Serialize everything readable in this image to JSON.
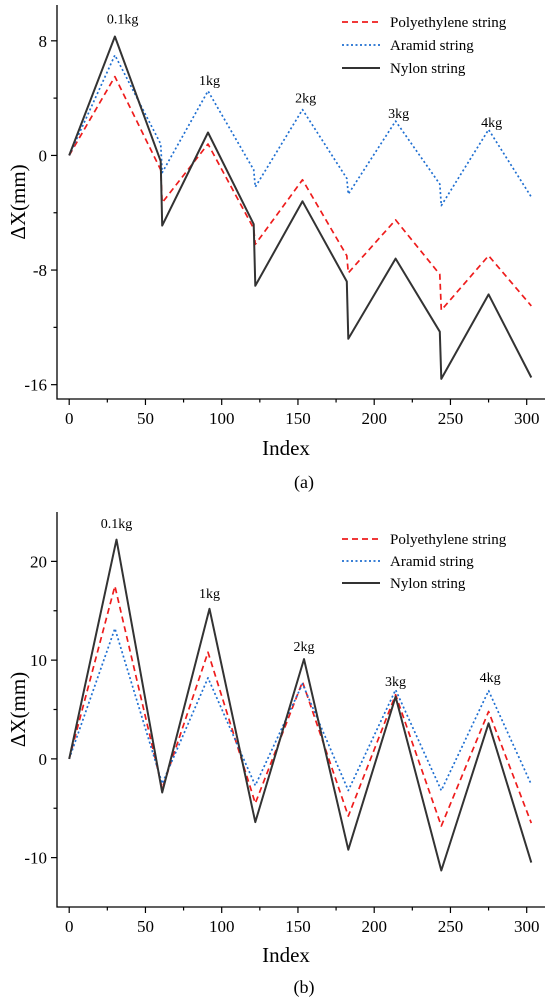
{
  "chart_data": [
    {
      "type": "line",
      "panel_label": "(a)",
      "xlabel": "Index",
      "ylabel": "ΔX(mm)",
      "xlim": [
        -8,
        312
      ],
      "ylim": [
        -17,
        10.5
      ],
      "xticks": [
        0,
        50,
        100,
        150,
        200,
        250,
        300
      ],
      "yticks": [
        -16,
        -8,
        0,
        8
      ],
      "legend_position": "top-right",
      "annotations": [
        {
          "text": "0.1kg",
          "x": 35,
          "y": 9.2
        },
        {
          "text": "1kg",
          "x": 92,
          "y": 4.9
        },
        {
          "text": "2kg",
          "x": 155,
          "y": 3.7
        },
        {
          "text": "3kg",
          "x": 216,
          "y": 2.6
        },
        {
          "text": "4kg",
          "x": 277,
          "y": 2.0
        }
      ],
      "series": [
        {
          "name": "Polyethylene string",
          "color": "#ee1c1c",
          "dash": "6,4",
          "x": [
            0,
            30,
            60,
            61,
            91,
            121,
            122,
            153,
            182,
            183,
            214,
            243,
            244,
            275,
            303
          ],
          "y": [
            0,
            5.5,
            -1.0,
            -3.3,
            0.8,
            -5.1,
            -6.2,
            -1.7,
            -7.0,
            -8.2,
            -4.5,
            -8.3,
            -10.8,
            -7.0,
            -10.5
          ]
        },
        {
          "name": "Aramid string",
          "color": "#1f6fd1",
          "dash": "2,2.5",
          "x": [
            0,
            30,
            60,
            61,
            91,
            121,
            122,
            153,
            182,
            183,
            214,
            243,
            244,
            275,
            303
          ],
          "y": [
            0,
            7.0,
            0.8,
            -1.2,
            4.5,
            -1.0,
            -2.2,
            3.2,
            -1.6,
            -2.7,
            2.4,
            -2.0,
            -3.5,
            1.8,
            -2.9
          ]
        },
        {
          "name": "Nylon string",
          "color": "#333333",
          "dash": "",
          "x": [
            0,
            30,
            60,
            61,
            91,
            121,
            122,
            153,
            182,
            183,
            214,
            243,
            244,
            275,
            303
          ],
          "y": [
            0,
            8.3,
            -0.4,
            -4.9,
            1.6,
            -4.8,
            -9.1,
            -3.2,
            -8.8,
            -12.8,
            -7.2,
            -12.3,
            -15.6,
            -9.7,
            -15.5
          ]
        }
      ]
    },
    {
      "type": "line",
      "panel_label": "(b)",
      "xlabel": "Index",
      "ylabel": "ΔX(mm)",
      "xlim": [
        -8,
        312
      ],
      "ylim": [
        -15,
        25
      ],
      "xticks": [
        0,
        50,
        100,
        150,
        200,
        250,
        300
      ],
      "yticks": [
        -10,
        0,
        10,
        20
      ],
      "legend_position": "top-right",
      "annotations": [
        {
          "text": "0.1kg",
          "x": 31,
          "y": 23.4
        },
        {
          "text": "1kg",
          "x": 92,
          "y": 16.3
        },
        {
          "text": "2kg",
          "x": 154,
          "y": 10.9
        },
        {
          "text": "3kg",
          "x": 214,
          "y": 7.4
        },
        {
          "text": "4kg",
          "x": 276,
          "y": 7.8
        }
      ],
      "series": [
        {
          "name": "Polyethylene string",
          "color": "#ee1c1c",
          "dash": "6,4",
          "x": [
            0,
            30,
            61,
            91,
            122,
            153,
            183,
            214,
            244,
            275,
            303
          ],
          "y": [
            0,
            17.5,
            -3.0,
            10.8,
            -4.5,
            7.8,
            -5.8,
            6.5,
            -6.8,
            4.8,
            -6.5
          ]
        },
        {
          "name": "Aramid string",
          "color": "#1f6fd1",
          "dash": "2,2.5",
          "x": [
            0,
            30,
            61,
            91,
            122,
            153,
            183,
            214,
            244,
            275,
            303
          ],
          "y": [
            0,
            13.2,
            -2.5,
            8.2,
            -2.7,
            7.6,
            -3.2,
            7.0,
            -3.2,
            6.9,
            -2.6
          ]
        },
        {
          "name": "Nylon string",
          "color": "#333333",
          "dash": "",
          "x": [
            0,
            31,
            61,
            92,
            122,
            154,
            183,
            214,
            244,
            275,
            303
          ],
          "y": [
            0,
            22.2,
            -3.4,
            15.2,
            -6.4,
            10.1,
            -9.2,
            6.3,
            -11.3,
            3.6,
            -10.5
          ]
        }
      ]
    }
  ]
}
